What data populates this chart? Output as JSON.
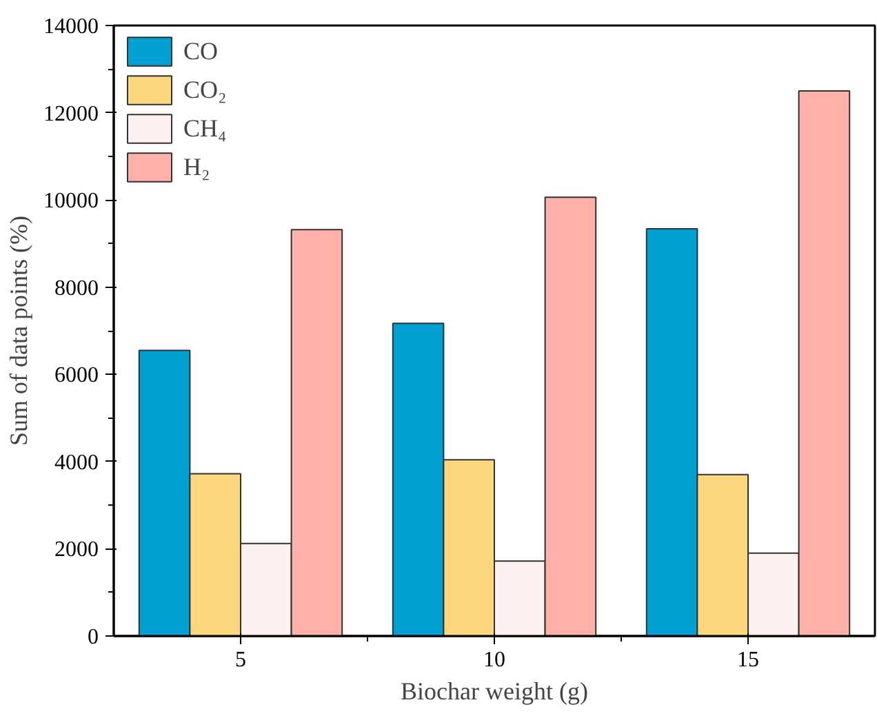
{
  "chart_data": {
    "type": "bar",
    "xlabel": "Biochar weight (g)",
    "ylabel": "Sum of data points (%)",
    "categories": [
      "5",
      "10",
      "15"
    ],
    "series": [
      {
        "name": "CO",
        "color": "#00a0d2",
        "values": [
          6550,
          7170,
          9340
        ]
      },
      {
        "name": "CO₂",
        "color": "#fdd780",
        "values": [
          3720,
          4040,
          3700
        ]
      },
      {
        "name": "CH₄",
        "color": "#fdf0f0",
        "values": [
          2120,
          1720,
          1900
        ]
      },
      {
        "name": "H₂",
        "color": "#ffb0a8",
        "values": [
          9320,
          10060,
          12500
        ]
      }
    ],
    "ylim": [
      0,
      14000
    ],
    "yticks": [
      0,
      2000,
      4000,
      6000,
      8000,
      10000,
      12000,
      14000
    ],
    "grid": false,
    "legend": "top left"
  }
}
